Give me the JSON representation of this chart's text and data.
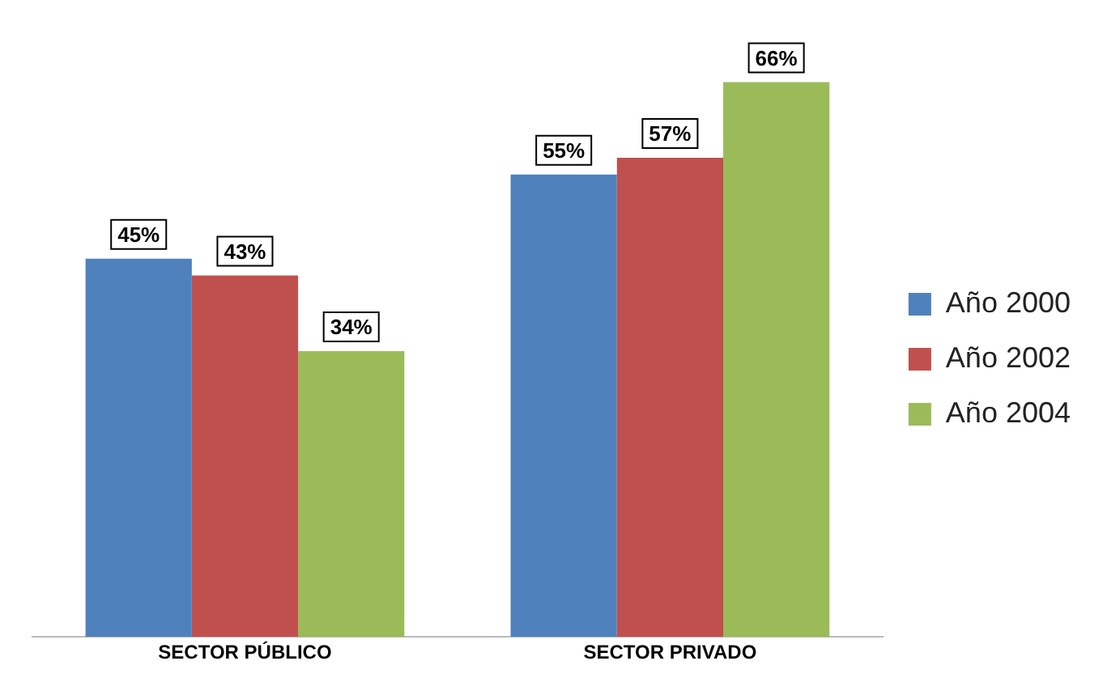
{
  "chart_data": {
    "type": "bar",
    "categories": [
      "SECTOR PÚBLICO",
      "SECTOR PRIVADO"
    ],
    "series": [
      {
        "name": "Año 2000",
        "color": "#4f81bd",
        "values": [
          45,
          55
        ],
        "value_labels": [
          "45%",
          "55%"
        ]
      },
      {
        "name": "Año 2002",
        "color": "#c0504d",
        "values": [
          43,
          57
        ],
        "value_labels": [
          "43%",
          "57%"
        ]
      },
      {
        "name": "Año 2004",
        "color": "#9bbb59",
        "values": [
          34,
          66
        ],
        "value_labels": [
          "34%",
          "66%"
        ]
      }
    ],
    "legend": "right",
    "grid": false
  }
}
